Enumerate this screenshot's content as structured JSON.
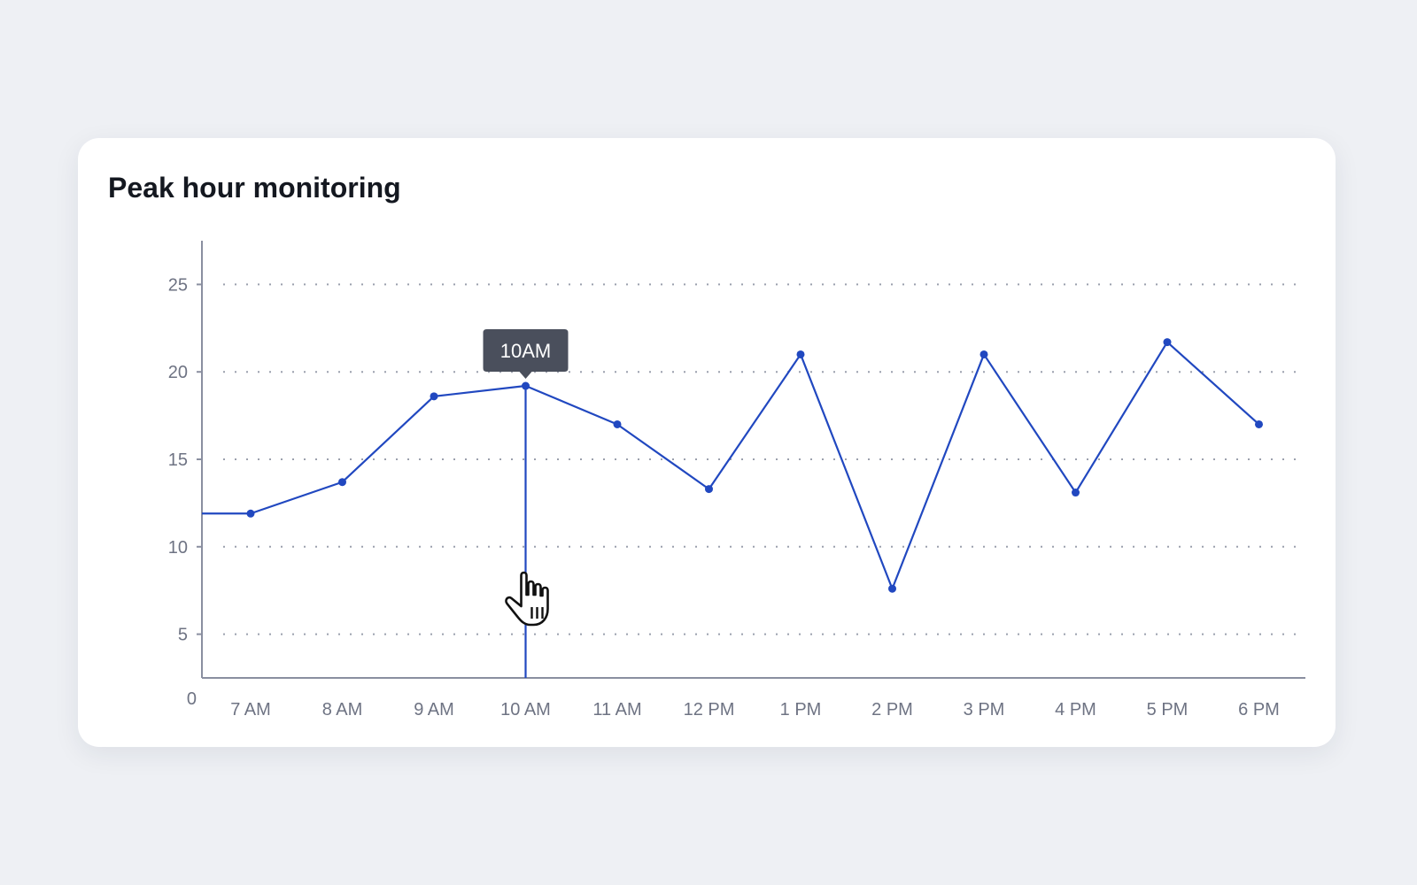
{
  "card": {
    "title": "Peak hour monitoring"
  },
  "chart_data": {
    "type": "line",
    "categories": [
      "7 AM",
      "8 AM",
      "9 AM",
      "10 AM",
      "11 AM",
      "12 PM",
      "1 PM",
      "2 PM",
      "3 PM",
      "4 PM",
      "5 PM",
      "6 PM"
    ],
    "series": [
      {
        "values": [
          11.9,
          13.7,
          18.6,
          19.2,
          17.0,
          13.3,
          21.0,
          7.6,
          21.0,
          13.1,
          21.7,
          17.0
        ]
      }
    ],
    "line_start_value": 11.9,
    "yticks": [
      0,
      5,
      10,
      15,
      20,
      25
    ],
    "ylim": [
      2.5,
      27.5
    ],
    "grid": true,
    "grid_style": "dotted-horizontal",
    "line_color": "#2148c0",
    "axis_color": "#8a8fa0",
    "tooltip": {
      "label": "10AM",
      "category": "10 AM"
    },
    "cursor": "hand-pointer-icon"
  }
}
